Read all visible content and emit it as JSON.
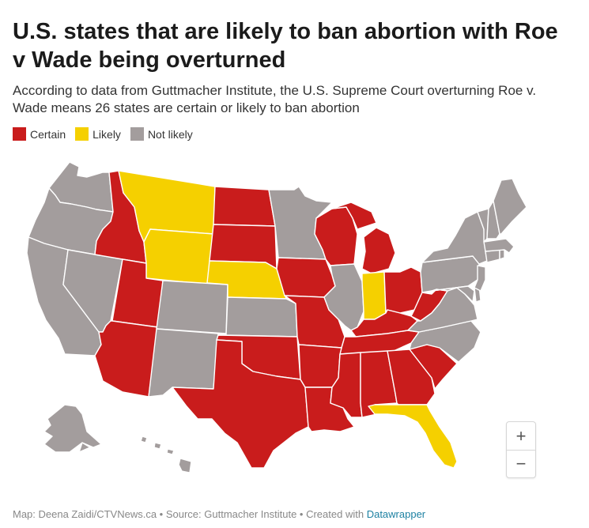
{
  "title": "U.S. states that are likely to ban abortion with Roe v Wade being overturned",
  "subtitle": "According to data from Guttmacher Institute, the U.S. Supreme Court overturning Roe v. Wade means 26 states are certain or likely to ban abortion",
  "legend": [
    {
      "label": "Certain",
      "color": "#c91c1c"
    },
    {
      "label": "Likely",
      "color": "#f5d000"
    },
    {
      "label": "Not likely",
      "color": "#a39d9d"
    }
  ],
  "categories": {
    "certain": [
      "ID",
      "UT",
      "AZ",
      "ND",
      "SD",
      "TX",
      "OK",
      "MO",
      "IA",
      "WI",
      "MI",
      "OH",
      "WV",
      "KY",
      "TN",
      "AR",
      "LA",
      "MS",
      "AL",
      "GA",
      "SC"
    ],
    "likely": [
      "MT",
      "WY",
      "NE",
      "IN",
      "FL"
    ],
    "not_likely": [
      "WA",
      "OR",
      "CA",
      "NV",
      "CO",
      "NM",
      "KS",
      "MN",
      "IL",
      "NY",
      "PA",
      "VA",
      "NC",
      "ME",
      "VT",
      "NH",
      "MA",
      "CT",
      "RI",
      "NJ",
      "DE",
      "MD",
      "DC",
      "AK",
      "HI"
    ]
  },
  "zoom": {
    "in_label": "+",
    "out_label": "−"
  },
  "footer": {
    "text": "Map: Deena Zaidi/CTVNews.ca • Source: Guttmacher Institute • Created with",
    "link": "Datawrapper"
  }
}
